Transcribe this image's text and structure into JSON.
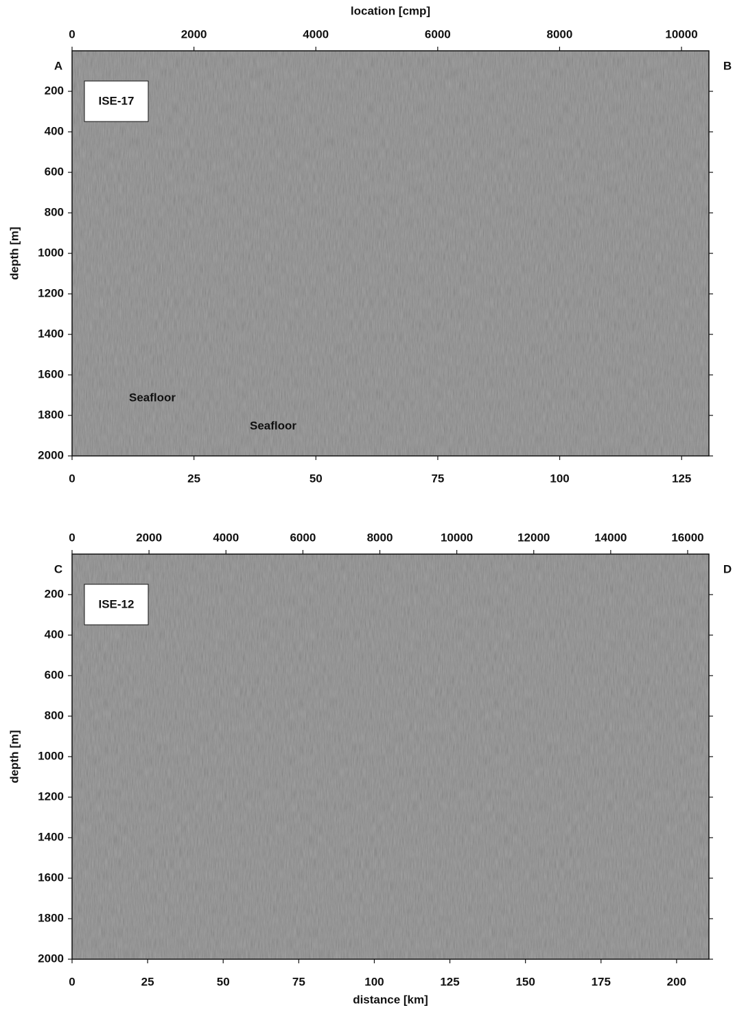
{
  "chart_data": [
    {
      "type": "image",
      "x2label": "location [cmp]",
      "x2lim": [
        0,
        10450
      ],
      "x2ticks": [
        0,
        2000,
        4000,
        6000,
        8000,
        10000
      ],
      "xlim": [
        0,
        130.6
      ],
      "xticks": [
        0,
        25,
        50,
        75,
        100,
        125
      ],
      "ylabel": "depth [m]",
      "ylim": [
        0,
        2000
      ],
      "yticks": [
        200,
        400,
        600,
        800,
        1000,
        1200,
        1400,
        1600,
        1800,
        2000
      ],
      "corner_labels": [
        "A",
        "B"
      ],
      "line_label": "ISE-17",
      "annotations": [
        "Seafloor",
        "Seafloor"
      ]
    },
    {
      "type": "image",
      "x2lim": [
        0,
        16553
      ],
      "x2ticks": [
        0,
        2000,
        4000,
        6000,
        8000,
        10000,
        12000,
        14000,
        16000
      ],
      "xlabel": "distance [km]",
      "xlim": [
        0,
        210.7
      ],
      "xticks": [
        0,
        25,
        50,
        75,
        100,
        125,
        150,
        175,
        200
      ],
      "ylabel": "depth [m]",
      "ylim": [
        0,
        2000
      ],
      "yticks": [
        200,
        400,
        600,
        800,
        1000,
        1200,
        1400,
        1600,
        1800,
        2000
      ],
      "corner_labels": [
        "C",
        "D"
      ],
      "line_label": "ISE-12"
    }
  ]
}
